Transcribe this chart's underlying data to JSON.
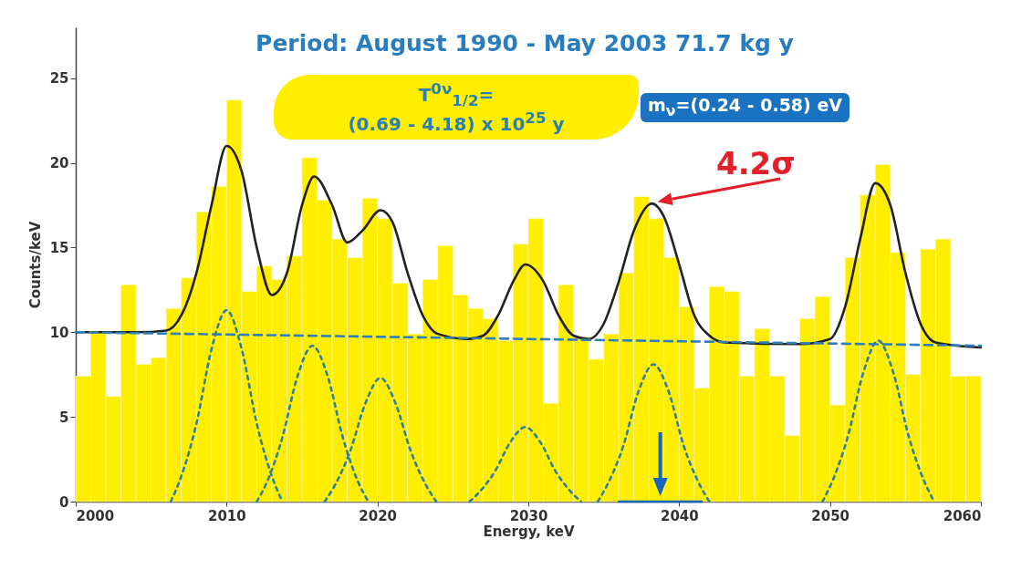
{
  "chart_data": {
    "type": "histogram",
    "title": "Period: August 1990 - May 2003 71.7 kg y",
    "xlabel": "Energy, keV",
    "ylabel": "Counts/keV",
    "xlim": [
      2000,
      2060
    ],
    "xticks": [
      2000,
      2010,
      2020,
      2030,
      2040,
      2050,
      2060
    ],
    "ylim": [
      0,
      28
    ],
    "yticks": [
      0,
      5,
      10,
      15,
      20,
      25
    ],
    "grid": false,
    "marker": "none",
    "annotations": [
      "T$^{0ν}$$_{1/2}$=\n(0.69 - 4.18) x 10$^{25}$ y",
      "m$_{ν}$=(0.24 - 0.58) eV",
      {
        "text": "4.2σ",
        "x": 2038.2,
        "y": 17.6
      }
    ],
    "series": [
      {
        "type": "histogram",
        "color": "#ffee00",
        "bins": [
          2000,
          2001,
          2002,
          2003,
          2004,
          2005,
          2006,
          2007,
          2008,
          2009,
          2010,
          2011,
          2012,
          2013,
          2014,
          2015,
          2016,
          2017,
          2018,
          2019,
          2020,
          2021,
          2022,
          2023,
          2024,
          2025,
          2026,
          2027,
          2028,
          2029,
          2030,
          2031,
          2032,
          2033,
          2034,
          2035,
          2036,
          2037,
          2038,
          2039,
          2040,
          2041,
          2042,
          2043,
          2044,
          2045,
          2046,
          2047,
          2048,
          2049,
          2050,
          2051,
          2052,
          2053,
          2054,
          2055,
          2056,
          2057,
          2058,
          2059,
          2060
        ],
        "values": [
          7.4,
          10.0,
          6.2,
          12.8,
          8.1,
          8.5,
          11.4,
          13.2,
          17.1,
          18.6,
          23.7,
          12.4,
          13.9,
          13.1,
          14.5,
          20.3,
          17.8,
          15.5,
          14.4,
          17.9,
          16.7,
          12.9,
          9.9,
          13.1,
          15.1,
          12.2,
          11.4,
          10.8,
          9.5,
          15.2,
          16.7,
          5.8,
          12.8,
          9.7,
          8.4,
          9.9,
          13.5,
          18.0,
          16.7,
          14.4,
          11.5,
          6.7,
          12.7,
          12.4,
          7.4,
          10.2,
          7.4,
          3.9,
          10.8,
          12.1,
          5.7,
          14.4,
          18.1,
          19.9,
          14.7,
          7.5,
          14.9,
          15.5,
          7.4,
          7.4
        ]
      },
      {
        "type": "line",
        "color": "#222222",
        "line_style": "solid",
        "x": [
          2000,
          2004,
          2006,
          2007,
          2008,
          2009,
          2010,
          2011,
          2012,
          2013,
          2014,
          2015,
          2015.8,
          2017,
          2018,
          2019,
          2020.2,
          2021,
          2022,
          2023,
          2024,
          2026,
          2027,
          2028,
          2029,
          2029.8,
          2031,
          2032,
          2033,
          2034,
          2035,
          2036,
          2037,
          2038.2,
          2039,
          2040,
          2041,
          2042,
          2043,
          2048,
          2050,
          2051,
          2052,
          2053,
          2054,
          2055,
          2056,
          2057,
          2060
        ],
        "values": [
          10.0,
          10.0,
          10.1,
          11.0,
          13.5,
          17.5,
          21.0,
          19.5,
          15.0,
          12.2,
          13.5,
          17.5,
          19.2,
          17.5,
          15.3,
          16.0,
          17.2,
          16.5,
          13.5,
          11.0,
          9.9,
          9.6,
          9.8,
          11.0,
          13.0,
          14.0,
          13.0,
          11.0,
          9.8,
          9.6,
          10.5,
          13.0,
          16.0,
          17.6,
          16.8,
          14.0,
          11.0,
          9.8,
          9.4,
          9.3,
          9.6,
          11.5,
          15.5,
          18.8,
          17.5,
          13.5,
          10.5,
          9.4,
          9.1
        ]
      },
      {
        "type": "line",
        "color": "#2f7fb8",
        "line_style": "dashed",
        "x": [
          2000,
          2060
        ],
        "values": [
          10.0,
          9.2
        ]
      },
      {
        "type": "line",
        "color": "#2f8098",
        "line_style": "dotted",
        "x": [
          2006.3,
          2007,
          2008,
          2009,
          2010,
          2011,
          2012,
          2013,
          2013.7
        ],
        "values": [
          0,
          1.5,
          4.6,
          9.0,
          11.3,
          9.0,
          4.6,
          1.5,
          0
        ]
      },
      {
        "type": "line",
        "color": "#2f8098",
        "line_style": "dotted",
        "x": [
          2012,
          2012.7,
          2013.7,
          2014.7,
          2015.7,
          2016.7,
          2017.7,
          2018.7,
          2019.4
        ],
        "values": [
          0,
          1.2,
          3.8,
          7.4,
          9.2,
          7.4,
          3.8,
          1.2,
          0
        ]
      },
      {
        "type": "line",
        "color": "#2f8098",
        "line_style": "dotted",
        "x": [
          2016.5,
          2017.2,
          2018.2,
          2019.2,
          2020.2,
          2021.2,
          2022.2,
          2023.2,
          2023.9
        ],
        "values": [
          0,
          1.0,
          3.0,
          5.8,
          7.3,
          5.8,
          3.0,
          1.0,
          0
        ]
      },
      {
        "type": "line",
        "color": "#2f8098",
        "line_style": "dotted",
        "x": [
          2026.1,
          2026.8,
          2027.8,
          2028.8,
          2029.8,
          2030.8,
          2031.8,
          2032.8,
          2033.5
        ],
        "values": [
          0,
          0.6,
          1.8,
          3.5,
          4.4,
          3.5,
          1.8,
          0.6,
          0
        ]
      },
      {
        "type": "line",
        "color": "#2f8098",
        "line_style": "dotted",
        "x": [
          2034.6,
          2035.3,
          2036.3,
          2037.3,
          2038.3,
          2039.3,
          2040.3,
          2041.3,
          2042
        ],
        "values": [
          0,
          1.1,
          3.3,
          6.5,
          8.1,
          6.5,
          3.3,
          1.1,
          0
        ]
      },
      {
        "type": "line",
        "color": "#2f8098",
        "line_style": "dotted",
        "x": [
          2049.5,
          2050.2,
          2051.2,
          2052.2,
          2053.2,
          2054.2,
          2055.2,
          2056.2,
          2056.9
        ],
        "values": [
          0,
          1.3,
          3.9,
          7.6,
          9.5,
          7.6,
          3.9,
          1.3,
          0
        ]
      },
      {
        "type": "line",
        "color": "#1565c0",
        "line_style": "solid",
        "x": [
          2036,
          2041.5
        ],
        "values": [
          0,
          0
        ]
      }
    ]
  }
}
